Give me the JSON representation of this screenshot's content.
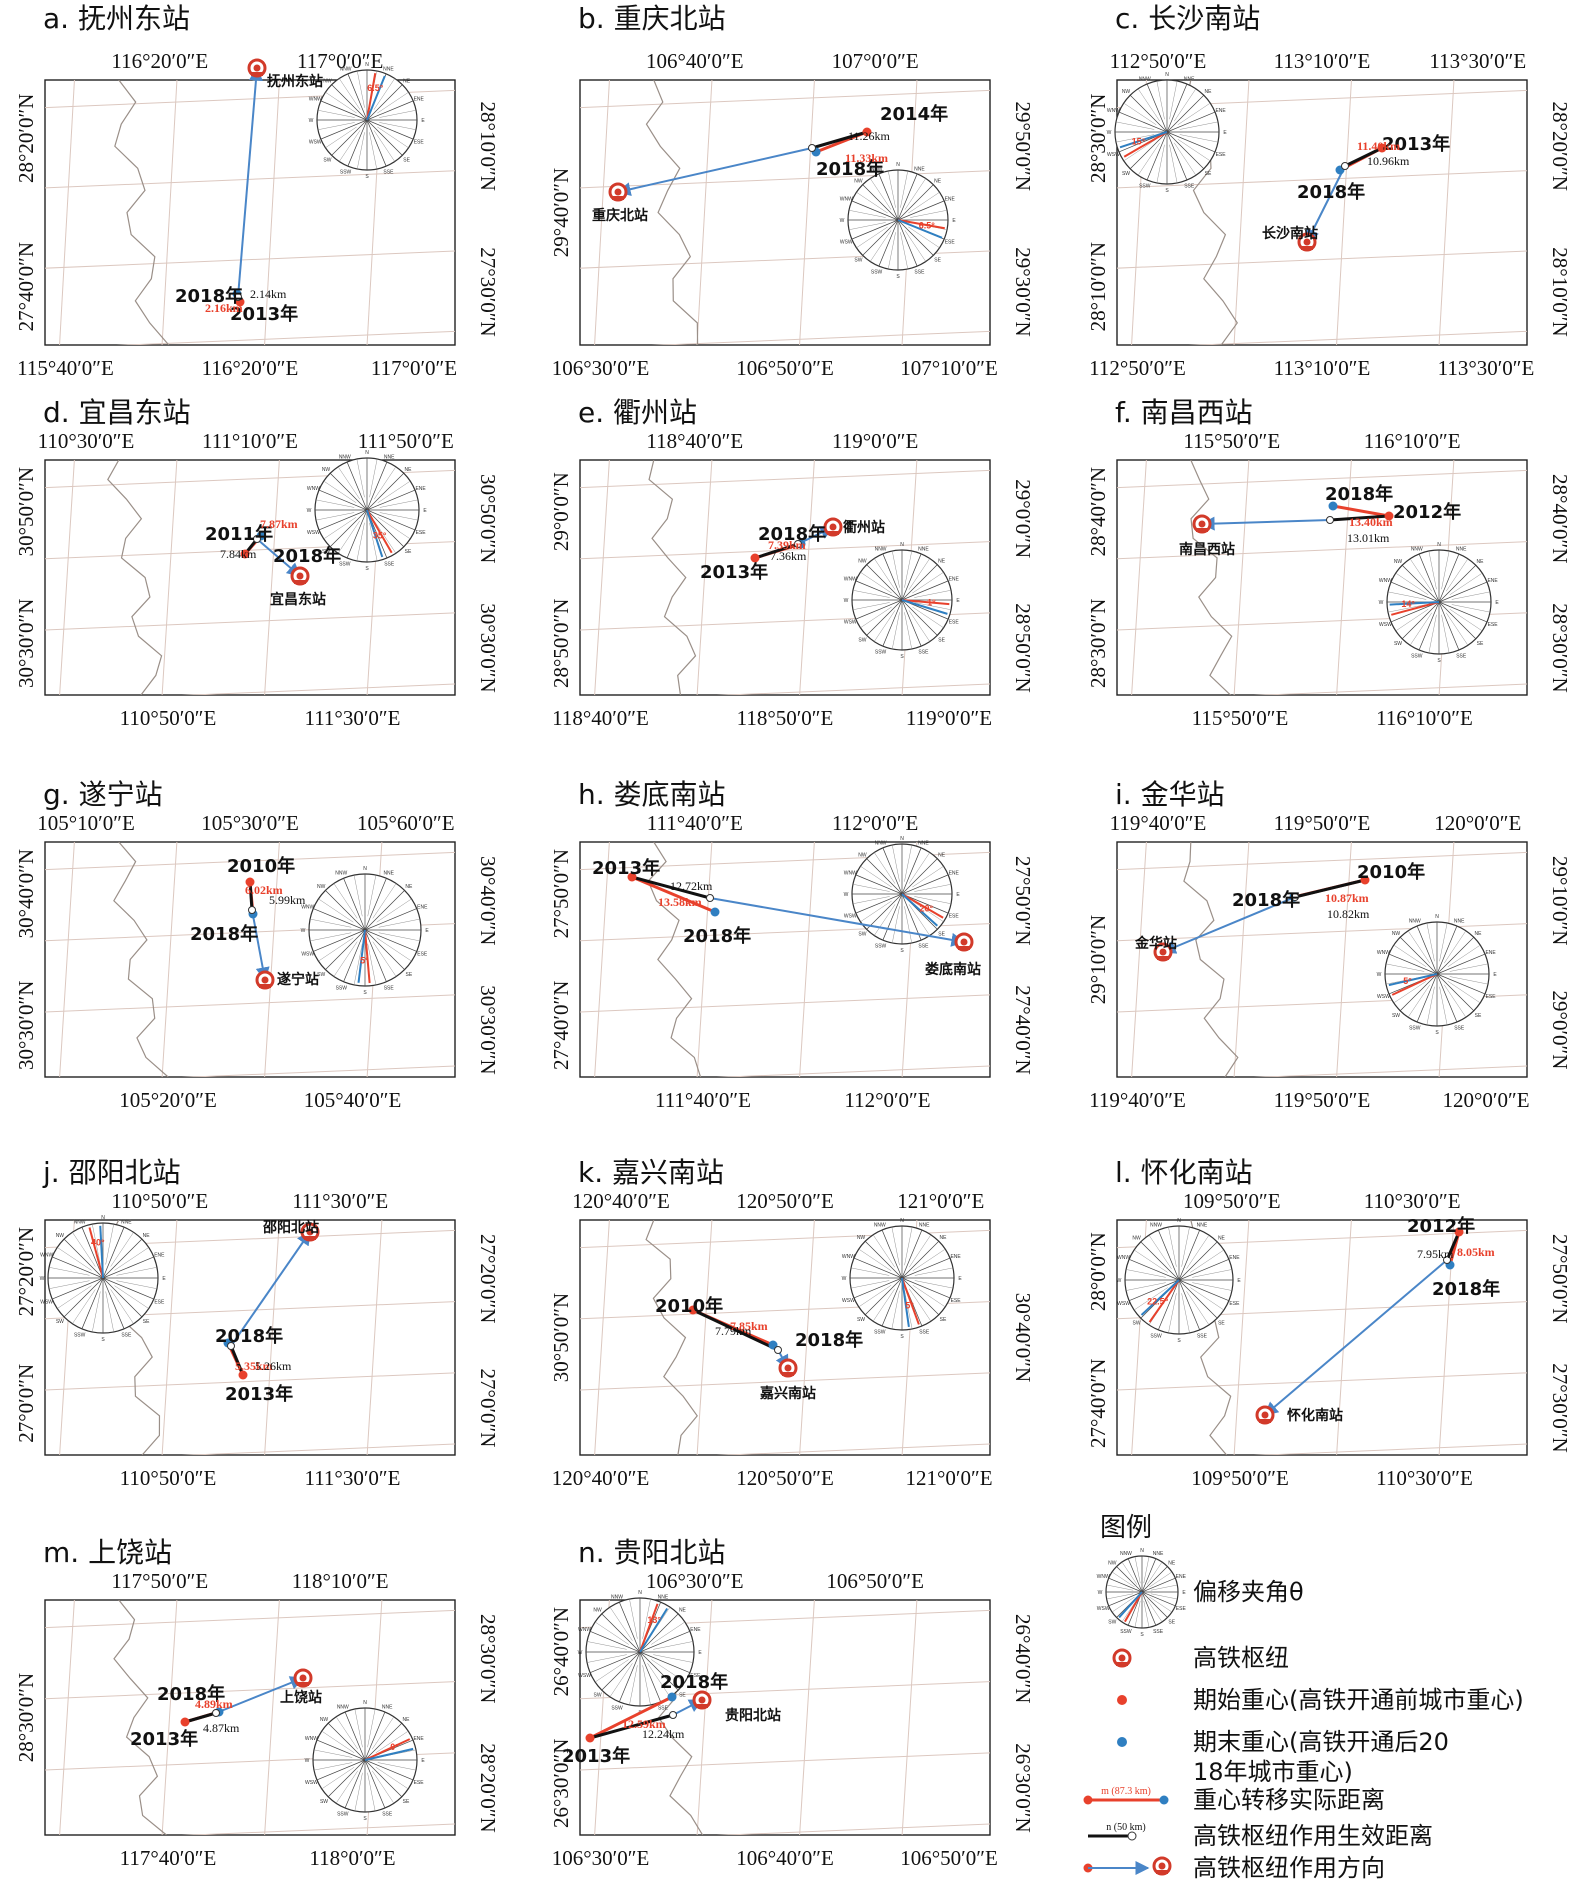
{
  "panels": [
    {
      "id": "a",
      "title": "a. 抚州东站",
      "top_ticks": [
        "116°20′0″E",
        "117°0′0″E"
      ],
      "bottom_ticks": [
        "115°40′0″E",
        "116°20′0″E",
        "117°0′0″E"
      ],
      "left_ticks": [
        "28°20′0″N",
        "27°40′0″N"
      ],
      "right_ticks": [
        "28°10′0″N",
        "27°30′0″N"
      ],
      "station": "抚州东站",
      "start_year": "2013年",
      "end_year": "2018年",
      "actual_distance": "2.16km",
      "effective_distance": "2.14km",
      "angle": "6.5°"
    },
    {
      "id": "b",
      "title": "b. 重庆北站",
      "top_ticks": [
        "106°40′0″E",
        "107°0′0″E"
      ],
      "bottom_ticks": [
        "106°30′0″E",
        "106°50′0″E",
        "107°10′0″E"
      ],
      "left_ticks": [
        "29°40′0″N"
      ],
      "right_ticks": [
        "29°50′0″N",
        "29°30′0″N"
      ],
      "station": "重庆北站",
      "start_year": "2014年",
      "end_year": "2018年",
      "actual_distance": "11.33km",
      "effective_distance": "11.26km",
      "angle": "6.5°"
    },
    {
      "id": "c",
      "title": "c. 长沙南站",
      "top_ticks": [
        "112°50′0″E",
        "113°10′0″E",
        "113°30′0″E"
      ],
      "bottom_ticks": [
        "112°50′0″E",
        "113°10′0″E",
        "113°30′0″E"
      ],
      "left_ticks": [
        "28°30′0″N",
        "28°10′0″N"
      ],
      "right_ticks": [
        "28°20′0″N",
        "28°10′0″N"
      ],
      "station": "长沙南站",
      "start_year": "2013年",
      "end_year": "2018年",
      "actual_distance": "11.40km",
      "effective_distance": "10.96km",
      "angle": "15°"
    },
    {
      "id": "d",
      "title": "d. 宜昌东站",
      "top_ticks": [
        "110°30′0″E",
        "111°10′0″E",
        "111°50′0″E"
      ],
      "bottom_ticks": [
        "110°50′0″E",
        "111°30′0″E"
      ],
      "left_ticks": [
        "30°50′0″N",
        "30°30′0″N"
      ],
      "right_ticks": [
        "30°50′0″N",
        "30°30′0″N"
      ],
      "station": "宜昌东站",
      "start_year": "2011年",
      "end_year": "2018年",
      "actual_distance": "7.87km",
      "effective_distance": "7.84km",
      "angle": "35°"
    },
    {
      "id": "e",
      "title": "e. 衢州站",
      "top_ticks": [
        "118°40′0″E",
        "119°0′0″E"
      ],
      "bottom_ticks": [
        "118°40′0″E",
        "118°50′0″E",
        "119°0′0″E"
      ],
      "left_ticks": [
        "29°0′0″N",
        "28°50′0″N"
      ],
      "right_ticks": [
        "29°0′0″N",
        "28°50′0″N"
      ],
      "station": "衢州站",
      "start_year": "2013年",
      "end_year": "2018年",
      "actual_distance": "7.39km",
      "effective_distance": "7.36km",
      "angle": "1°"
    },
    {
      "id": "f",
      "title": "f. 南昌西站",
      "top_ticks": [
        "115°50′0″E",
        "116°10′0″E"
      ],
      "bottom_ticks": [
        "115°50′0″E",
        "116°10′0″E"
      ],
      "left_ticks": [
        "28°40′0″N",
        "28°30′0″N"
      ],
      "right_ticks": [
        "28°40′0″N",
        "28°30′0″N"
      ],
      "station": "南昌西站",
      "start_year": "2012年",
      "end_year": "2018年",
      "actual_distance": "13.40km",
      "effective_distance": "13.01km",
      "angle": "14°"
    },
    {
      "id": "g",
      "title": "g. 遂宁站",
      "top_ticks": [
        "105°10′0″E",
        "105°30′0″E",
        "105°60′0″E"
      ],
      "bottom_ticks": [
        "105°20′0″E",
        "105°40′0″E"
      ],
      "left_ticks": [
        "30°40′0″N",
        "30°30′0″N"
      ],
      "right_ticks": [
        "30°40′0″N",
        "30°30′0″N"
      ],
      "station": "遂宁站",
      "start_year": "2010年",
      "end_year": "2018年",
      "actual_distance": "6.02km",
      "effective_distance": "5.99km",
      "angle": "5°"
    },
    {
      "id": "h",
      "title": "h. 娄底南站",
      "top_ticks": [
        "111°40′0″E",
        "112°0′0″E"
      ],
      "bottom_ticks": [
        "111°40′0″E",
        "112°0′0″E"
      ],
      "left_ticks": [
        "27°50′0″N",
        "27°40′0″N"
      ],
      "right_ticks": [
        "27°50′0″N",
        "27°40′0″N"
      ],
      "station": "娄底南站",
      "start_year": "2013年",
      "end_year": "2018年",
      "actual_distance": "13.58km",
      "effective_distance": "12.72km",
      "angle": "20°"
    },
    {
      "id": "i",
      "title": "i. 金华站",
      "top_ticks": [
        "119°40′0″E",
        "119°50′0″E",
        "120°0′0″E"
      ],
      "bottom_ticks": [
        "119°40′0″E",
        "119°50′0″E",
        "120°0′0″E"
      ],
      "left_ticks": [
        "29°10′0″N"
      ],
      "right_ticks": [
        "29°10′0″N",
        "29°0′0″N"
      ],
      "station": "金华站",
      "start_year": "2010年",
      "end_year": "2018年",
      "actual_distance": "10.87km",
      "effective_distance": "10.82km",
      "angle": "5°"
    },
    {
      "id": "j",
      "title": "j. 邵阳北站",
      "top_ticks": [
        "110°50′0″E",
        "111°30′0″E"
      ],
      "bottom_ticks": [
        "110°50′0″E",
        "111°30′0″E"
      ],
      "left_ticks": [
        "27°20′0″N",
        "27°0′0″N"
      ],
      "right_ticks": [
        "27°20′0″N",
        "27°0′0″N"
      ],
      "station": "邵阳北站",
      "start_year": "2013年",
      "end_year": "2018年",
      "actual_distance": "5.35km",
      "effective_distance": "5.26km",
      "angle": "40°"
    },
    {
      "id": "k",
      "title": "k. 嘉兴南站",
      "top_ticks": [
        "120°40′0″E",
        "120°50′0″E",
        "121°0′0″E"
      ],
      "bottom_ticks": [
        "120°40′0″E",
        "120°50′0″E",
        "121°0′0″E"
      ],
      "left_ticks": [
        "30°50′0″N"
      ],
      "right_ticks": [
        "30°40′0″N"
      ],
      "station": "嘉兴南站",
      "start_year": "2010年",
      "end_year": "2018年",
      "actual_distance": "7.85km",
      "effective_distance": "7.79km",
      "angle": "5°"
    },
    {
      "id": "l",
      "title": "l. 怀化南站",
      "top_ticks": [
        "109°50′0″E",
        "110°30′0″E"
      ],
      "bottom_ticks": [
        "109°50′0″E",
        "110°30′0″E"
      ],
      "left_ticks": [
        "28°0′0″N",
        "27°40′0″N"
      ],
      "right_ticks": [
        "27°50′0″N",
        "27°30′0″N"
      ],
      "station": "怀化南站",
      "start_year": "2012年",
      "end_year": "2018年",
      "actual_distance": "8.05km",
      "effective_distance": "7.95km",
      "angle": "22.5°"
    },
    {
      "id": "m",
      "title": "m. 上饶站",
      "top_ticks": [
        "117°50′0″E",
        "118°10′0″E"
      ],
      "bottom_ticks": [
        "117°40′0″E",
        "118°0′0″E"
      ],
      "left_ticks": [
        "28°30′0″N"
      ],
      "right_ticks": [
        "28°30′0″N",
        "28°20′0″N"
      ],
      "station": "上饶站",
      "start_year": "2013年",
      "end_year": "2018年",
      "actual_distance": "4.89km",
      "effective_distance": "4.87km",
      "angle": "0°"
    },
    {
      "id": "n",
      "title": "n. 贵阳北站",
      "top_ticks": [
        "106°30′0″E",
        "106°50′0″E"
      ],
      "bottom_ticks": [
        "106°30′0″E",
        "106°40′0″E",
        "106°50′0″E"
      ],
      "left_ticks": [
        "26°40′0″N",
        "26°30′0″N"
      ],
      "right_ticks": [
        "26°40′0″N",
        "26°30′0″N"
      ],
      "station": "贵阳北站",
      "start_year": "2013年",
      "end_year": "2018年",
      "actual_distance": "12.59km",
      "effective_distance": "12.24km",
      "angle": "13°"
    }
  ],
  "compass_labels": [
    "N",
    "NNE",
    "NE",
    "ENE",
    "E",
    "ESE",
    "SE",
    "SSE",
    "S",
    "SSW",
    "SW",
    "WSW",
    "W",
    "WNW",
    "NW",
    "NNW"
  ],
  "legend": {
    "title": "图例",
    "items": [
      {
        "key": "angle",
        "label": "偏移夹角θ"
      },
      {
        "key": "hub",
        "label": "高铁枢纽"
      },
      {
        "key": "start",
        "label": "期始重心(高铁开通前城市重心)"
      },
      {
        "key": "end",
        "label": "期末重心(高铁开通后2018年城市重心)"
      },
      {
        "key": "actual",
        "label": "重心转移实际距离",
        "sample": "m (87.3 km)"
      },
      {
        "key": "effective",
        "label": "高铁枢纽作用生效距离",
        "sample": "n (50 km)"
      },
      {
        "key": "direction",
        "label": "高铁枢纽作用方向"
      }
    ]
  },
  "colors": {
    "red": "#e8412c",
    "blue": "#2f7fc1",
    "arrow": "#4a86c8",
    "grid": "#dcc8c0",
    "coast": "#9a8f88",
    "hub": "#d23a2a"
  }
}
